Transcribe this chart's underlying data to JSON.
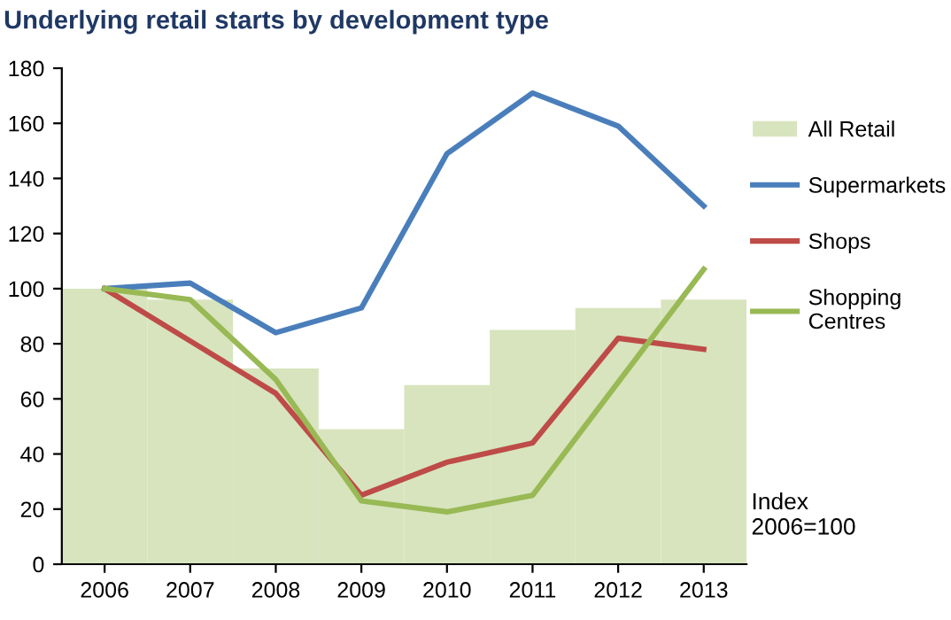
{
  "chart_data": {
    "type": "line",
    "title": "Underlying retail starts by development type",
    "categories": [
      "2006",
      "2007",
      "2008",
      "2009",
      "2010",
      "2011",
      "2012",
      "2013"
    ],
    "series": [
      {
        "name": "All Retail",
        "type": "bar",
        "color": "#d7e4bd",
        "values": [
          100,
          96,
          71,
          49,
          65,
          85,
          93,
          96
        ]
      },
      {
        "name": "Supermarkets",
        "color": "#4a7ebb",
        "values": [
          100,
          102,
          84,
          93,
          149,
          171,
          159,
          130
        ]
      },
      {
        "name": "Shops",
        "color": "#be4b48",
        "values": [
          100,
          81,
          62,
          25,
          37,
          44,
          82,
          78
        ]
      },
      {
        "name": "Shopping Centres",
        "color": "#98b954",
        "values": [
          100,
          96,
          67,
          23,
          19,
          25,
          66,
          107
        ]
      }
    ],
    "ylim": [
      0,
      180
    ],
    "yticks": [
      0,
      20,
      40,
      60,
      80,
      100,
      120,
      140,
      160,
      180
    ],
    "grid": false,
    "legend": "right",
    "marker": "none",
    "line_style": "solid",
    "annotations": [
      "Index\n2006=100"
    ]
  }
}
